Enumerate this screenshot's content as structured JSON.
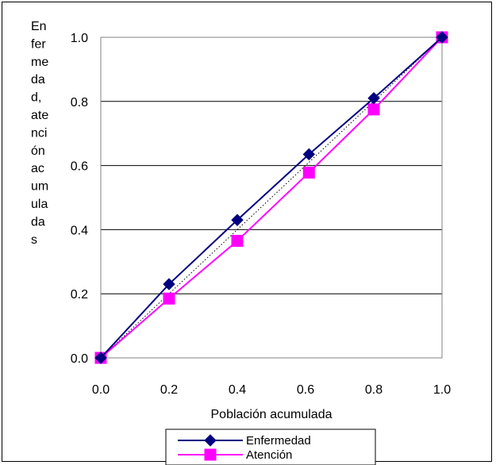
{
  "chart_data": {
    "type": "line",
    "ylabel_lines": [
      "En",
      "fer",
      "me",
      "da",
      "d,",
      "ate",
      "nci",
      "ón",
      "ac",
      "um",
      "ula",
      "da",
      "s"
    ],
    "xlabel": "Población acumulada",
    "xlim": [
      0.0,
      1.0
    ],
    "ylim": [
      0.0,
      1.0
    ],
    "x_ticks": [
      "0.0",
      "0.2",
      "0.4",
      "0.6",
      "0.8",
      "1.0"
    ],
    "y_ticks": [
      "0.0",
      "0.2",
      "0.4",
      "0.6",
      "0.8",
      "1.0"
    ],
    "grid": "horizontal",
    "legend_position": "bottom",
    "series": [
      {
        "name": "Enfermedad",
        "color": "#000080",
        "marker": "diamond",
        "x": [
          0.0,
          0.2,
          0.4,
          0.61,
          0.8,
          1.0
        ],
        "y": [
          0.0,
          0.23,
          0.43,
          0.635,
          0.81,
          1.0
        ]
      },
      {
        "name": "Atención",
        "color": "#ff00ff",
        "marker": "square",
        "x": [
          0.0,
          0.2,
          0.4,
          0.61,
          0.8,
          1.0
        ],
        "y": [
          0.0,
          0.185,
          0.365,
          0.578,
          0.775,
          1.0
        ]
      }
    ],
    "reference_line": {
      "style": "dotted",
      "color": "#000000",
      "x": [
        0.0,
        1.0
      ],
      "y": [
        0.0,
        1.0
      ]
    }
  }
}
